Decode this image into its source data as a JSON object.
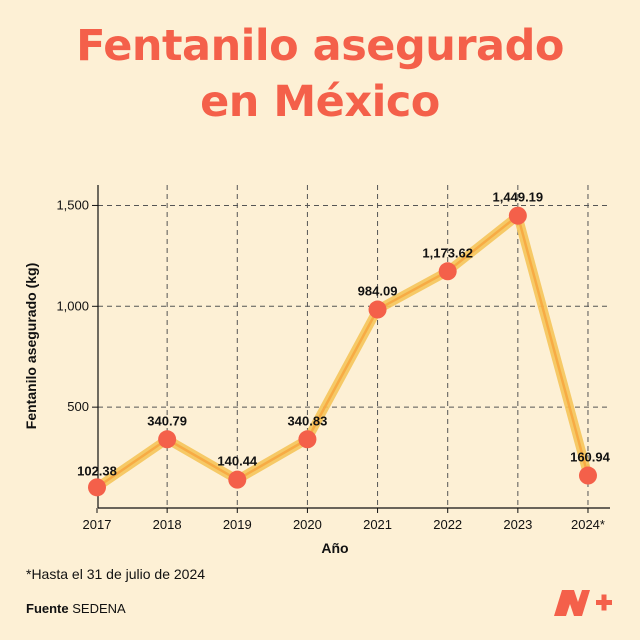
{
  "title_line1": "Fentanilo asegurado",
  "title_line2": "en México",
  "footnote": "*Hasta el 31 de julio de 2024",
  "source_label": "Fuente",
  "source_value": "SEDENA",
  "colors": {
    "title": "#f4604a",
    "line": "#f5c45a",
    "marker": "#f4604a",
    "background": "#fdf0d5"
  },
  "chart_data": {
    "type": "line",
    "categories": [
      "2017",
      "2018",
      "2019",
      "2020",
      "2021",
      "2022",
      "2023",
      "2024*"
    ],
    "values": [
      102.38,
      340.79,
      140.44,
      340.83,
      984.09,
      1173.62,
      1449.19,
      160.94
    ],
    "value_labels": [
      "102.38",
      "340.79",
      "140.44",
      "340.83",
      "984.09",
      "1,173.62",
      "1,449.19",
      "160.94"
    ],
    "xlabel": "Año",
    "ylabel": "Fentanilo asegurado (kg)",
    "yticks": [
      500,
      1000,
      1500
    ],
    "ytick_labels": [
      "500",
      "1,000",
      "1,500"
    ],
    "ylim": [
      0,
      1650
    ],
    "grid": true
  }
}
